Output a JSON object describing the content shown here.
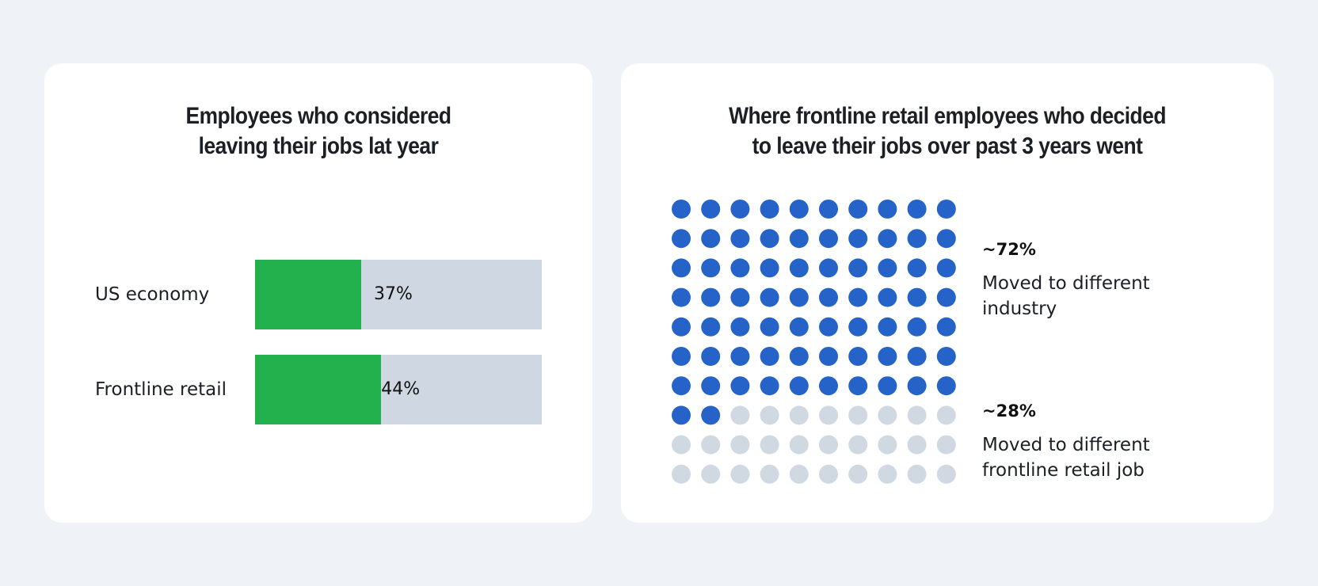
{
  "chart_data": [
    {
      "type": "bar",
      "title_lines": [
        "Employees who considered",
        "leaving their jobs lat year"
      ],
      "categories": [
        "US economy",
        "Frontline retail"
      ],
      "values": [
        37,
        44
      ],
      "value_labels": [
        "37%",
        "44%"
      ],
      "ylim": [
        0,
        100
      ],
      "colors": {
        "fill": "#22b14c",
        "track": "#cfd8e2"
      }
    },
    {
      "type": "waffle",
      "title_lines": [
        "Where frontline retail employees who decided",
        "to leave their jobs over past 3 years went"
      ],
      "rows": 10,
      "cols": 10,
      "categories": [
        {
          "value": 72,
          "label": "~72%",
          "desc_lines": [
            "Moved to different",
            "industry"
          ],
          "color": "#2563c9"
        },
        {
          "value": 28,
          "label": "~28%",
          "desc_lines": [
            "Moved to different",
            "frontline retail job"
          ],
          "color": "#d0d8e2"
        }
      ]
    }
  ]
}
